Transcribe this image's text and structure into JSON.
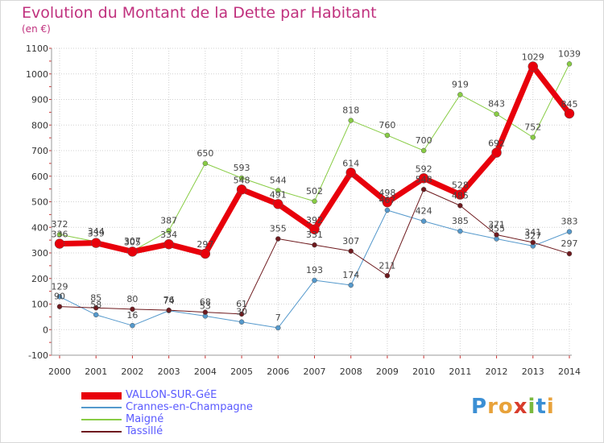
{
  "title": "Evolution du Montant de la Dette par Habitant",
  "subtitle": "(en €)",
  "logo": {
    "text": "Proxiti",
    "colors": [
      "#3b8fd4",
      "#e8a23a",
      "#e8a23a",
      "#d83c2c",
      "#7ab93e",
      "#3b8fd4",
      "#e8a23a"
    ]
  },
  "chart_data": {
    "type": "line",
    "title": "Evolution du Montant de la Dette par Habitant",
    "subtitle": "(en €)",
    "x": [
      2000,
      2001,
      2002,
      2003,
      2004,
      2005,
      2006,
      2007,
      2008,
      2009,
      2010,
      2011,
      2012,
      2013,
      2014
    ],
    "ylim": [
      -100,
      1100
    ],
    "yticks": [
      -100,
      0,
      100,
      200,
      300,
      400,
      500,
      600,
      700,
      800,
      900,
      1000,
      1100
    ],
    "grid": true,
    "legend_position": "bottom",
    "series": [
      {
        "name": "VALLON-SUR-GéE",
        "color": "#e8000b",
        "values": [
          336,
          339,
          305,
          334,
          297,
          548,
          491,
          392,
          614,
          498,
          592,
          528,
          692,
          1029,
          845
        ]
      },
      {
        "name": "Crannes-en-Champagne",
        "color": "#5599cc",
        "values": [
          129,
          58,
          16,
          74,
          53,
          30,
          7,
          193,
          174,
          467,
          424,
          385,
          355,
          327,
          383
        ]
      },
      {
        "name": "Maigné",
        "color": "#88cc44",
        "values": [
          372,
          344,
          307,
          387,
          650,
          593,
          544,
          502,
          818,
          760,
          700,
          919,
          843,
          752,
          1039
        ]
      },
      {
        "name": "Tassillé",
        "color": "#6e1a1e",
        "values": [
          90,
          85,
          80,
          76,
          68,
          61,
          355,
          331,
          307,
          211,
          548,
          485,
          371,
          341,
          297
        ]
      }
    ]
  }
}
